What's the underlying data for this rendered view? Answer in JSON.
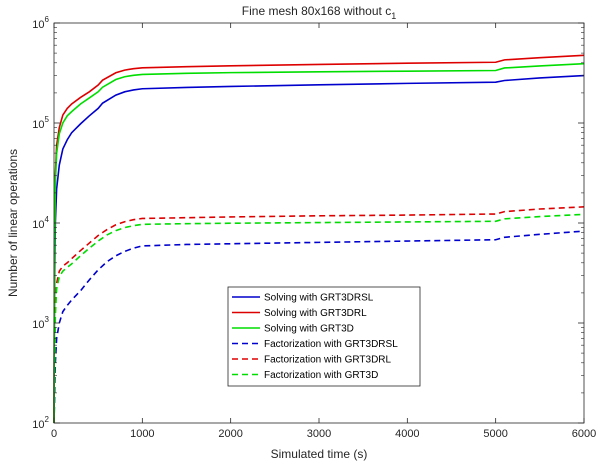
{
  "chart_data": {
    "type": "line",
    "title": "Fine mesh 80x168 without c",
    "title_subscript": "1",
    "xlabel": "Simulated time (s)",
    "ylabel": "Number of linear operations",
    "xlim": [
      0,
      6000
    ],
    "ylim": [
      100,
      1000000
    ],
    "yscale": "log",
    "grid": false,
    "legend_position": "center",
    "x_ticks": [
      "0",
      "1000",
      "2000",
      "3000",
      "4000",
      "5000",
      "6000"
    ],
    "y_ticks": [
      {
        "base": "10",
        "exp": "2"
      },
      {
        "base": "10",
        "exp": "3"
      },
      {
        "base": "10",
        "exp": "4"
      },
      {
        "base": "10",
        "exp": "5"
      },
      {
        "base": "10",
        "exp": "6"
      }
    ],
    "series": [
      {
        "name": "Solving with GRT3DRSL",
        "color": "#0000cc",
        "dash": "solid",
        "points": [
          [
            0,
            100
          ],
          [
            5,
            2000
          ],
          [
            15,
            10000
          ],
          [
            30,
            22000
          ],
          [
            60,
            38000
          ],
          [
            100,
            55000
          ],
          [
            150,
            68000
          ],
          [
            200,
            80000
          ],
          [
            300,
            98000
          ],
          [
            400,
            118000
          ],
          [
            500,
            140000
          ],
          [
            550,
            158000
          ],
          [
            700,
            190000
          ],
          [
            800,
            205000
          ],
          [
            900,
            214000
          ],
          [
            1000,
            220000
          ],
          [
            1500,
            227000
          ],
          [
            2000,
            232000
          ],
          [
            3000,
            241000
          ],
          [
            4000,
            249000
          ],
          [
            5000,
            256000
          ],
          [
            5100,
            266000
          ],
          [
            5500,
            282000
          ],
          [
            6000,
            298000
          ]
        ]
      },
      {
        "name": "Solving with GRT3DRL",
        "color": "#dd0000",
        "dash": "solid",
        "points": [
          [
            0,
            100
          ],
          [
            5,
            4000
          ],
          [
            15,
            30000
          ],
          [
            30,
            60000
          ],
          [
            60,
            90000
          ],
          [
            100,
            120000
          ],
          [
            150,
            140000
          ],
          [
            200,
            155000
          ],
          [
            300,
            180000
          ],
          [
            400,
            205000
          ],
          [
            500,
            240000
          ],
          [
            550,
            268000
          ],
          [
            700,
            318000
          ],
          [
            800,
            338000
          ],
          [
            900,
            349000
          ],
          [
            1000,
            356000
          ],
          [
            1500,
            366000
          ],
          [
            2000,
            373000
          ],
          [
            3000,
            385000
          ],
          [
            4000,
            396000
          ],
          [
            5000,
            405000
          ],
          [
            5100,
            428000
          ],
          [
            5500,
            450000
          ],
          [
            6000,
            475000
          ]
        ]
      },
      {
        "name": "Solving with GRT3D",
        "color": "#00dd00",
        "dash": "solid",
        "points": [
          [
            0,
            100
          ],
          [
            5,
            3500
          ],
          [
            15,
            25000
          ],
          [
            30,
            50000
          ],
          [
            60,
            78000
          ],
          [
            100,
            100000
          ],
          [
            150,
            118000
          ],
          [
            200,
            130000
          ],
          [
            300,
            155000
          ],
          [
            400,
            178000
          ],
          [
            500,
            205000
          ],
          [
            550,
            228000
          ],
          [
            700,
            272000
          ],
          [
            800,
            290000
          ],
          [
            900,
            300000
          ],
          [
            1000,
            306000
          ],
          [
            1500,
            314000
          ],
          [
            2000,
            319000
          ],
          [
            3000,
            325000
          ],
          [
            4000,
            330000
          ],
          [
            5000,
            335000
          ],
          [
            5100,
            355000
          ],
          [
            5500,
            372000
          ],
          [
            6000,
            392000
          ]
        ]
      },
      {
        "name": "Factorization with GRT3DRSL",
        "color": "#0000cc",
        "dash": "dashed",
        "points": [
          [
            0,
            100
          ],
          [
            5,
            150
          ],
          [
            15,
            400
          ],
          [
            30,
            700
          ],
          [
            60,
            1000
          ],
          [
            100,
            1300
          ],
          [
            150,
            1500
          ],
          [
            200,
            1700
          ],
          [
            300,
            2100
          ],
          [
            400,
            2700
          ],
          [
            500,
            3400
          ],
          [
            600,
            4100
          ],
          [
            700,
            4700
          ],
          [
            800,
            5200
          ],
          [
            900,
            5600
          ],
          [
            1000,
            5900
          ],
          [
            1500,
            6100
          ],
          [
            2000,
            6200
          ],
          [
            3000,
            6400
          ],
          [
            4000,
            6600
          ],
          [
            5000,
            6800
          ],
          [
            5100,
            7200
          ],
          [
            5500,
            7700
          ],
          [
            6000,
            8300
          ]
        ]
      },
      {
        "name": "Factorization with GRT3DRL",
        "color": "#dd0000",
        "dash": "dashed",
        "points": [
          [
            0,
            100
          ],
          [
            5,
            300
          ],
          [
            15,
            1500
          ],
          [
            30,
            2500
          ],
          [
            60,
            3300
          ],
          [
            100,
            3700
          ],
          [
            150,
            4000
          ],
          [
            200,
            4400
          ],
          [
            300,
            5300
          ],
          [
            400,
            6300
          ],
          [
            500,
            7500
          ],
          [
            600,
            8600
          ],
          [
            700,
            9600
          ],
          [
            800,
            10300
          ],
          [
            900,
            10800
          ],
          [
            1000,
            11100
          ],
          [
            1500,
            11300
          ],
          [
            2000,
            11500
          ],
          [
            3000,
            11800
          ],
          [
            4000,
            12000
          ],
          [
            5000,
            12300
          ],
          [
            5100,
            13000
          ],
          [
            5500,
            13800
          ],
          [
            6000,
            14500
          ]
        ]
      },
      {
        "name": "Factorization with GRT3D",
        "color": "#00dd00",
        "dash": "dashed",
        "points": [
          [
            0,
            100
          ],
          [
            5,
            250
          ],
          [
            15,
            1200
          ],
          [
            30,
            2200
          ],
          [
            60,
            2900
          ],
          [
            100,
            3300
          ],
          [
            150,
            3600
          ],
          [
            200,
            3900
          ],
          [
            300,
            4700
          ],
          [
            400,
            5600
          ],
          [
            500,
            6600
          ],
          [
            600,
            7600
          ],
          [
            700,
            8400
          ],
          [
            800,
            9000
          ],
          [
            900,
            9400
          ],
          [
            1000,
            9700
          ],
          [
            1500,
            9850
          ],
          [
            2000,
            9950
          ],
          [
            3000,
            10100
          ],
          [
            4000,
            10250
          ],
          [
            5000,
            10400
          ],
          [
            5100,
            11000
          ],
          [
            5500,
            11600
          ],
          [
            6000,
            12200
          ]
        ]
      }
    ]
  }
}
